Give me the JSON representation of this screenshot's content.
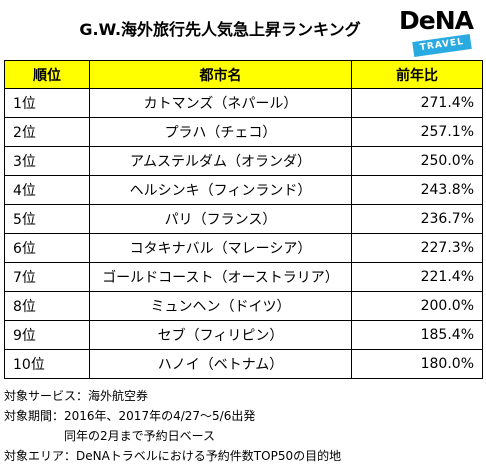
{
  "title": "G.W.海外旅行先人気急上昇ランキング",
  "logo": {
    "word": "DeNA",
    "sub": "TRAVEL",
    "accent_color": "#29abe2"
  },
  "table": {
    "headers": [
      "順位",
      "都市名",
      "前年比"
    ],
    "header_color": "#ffff00",
    "rows": [
      {
        "rank": "1位",
        "city": "カトマンズ（ネパール）",
        "value": "271.4%"
      },
      {
        "rank": "2位",
        "city": "プラハ（チェコ）",
        "value": "257.1%"
      },
      {
        "rank": "3位",
        "city": "アムステルダム（オランダ）",
        "value": "250.0%"
      },
      {
        "rank": "4位",
        "city": "ヘルシンキ（フィンランド）",
        "value": "243.8%"
      },
      {
        "rank": "5位",
        "city": "パリ（フランス）",
        "value": "236.7%"
      },
      {
        "rank": "6位",
        "city": "コタキナバル（マレーシア）",
        "value": "227.3%"
      },
      {
        "rank": "7位",
        "city": "ゴールドコースト（オーストラリア）",
        "value": "221.4%"
      },
      {
        "rank": "8位",
        "city": "ミュンヘン（ドイツ）",
        "value": "200.0%"
      },
      {
        "rank": "9位",
        "city": "セブ（フィリピン）",
        "value": "185.4%"
      },
      {
        "rank": "10位",
        "city": "ハノイ（ベトナム）",
        "value": "180.0%"
      }
    ]
  },
  "notes": [
    "対象サービス：海外航空券",
    "対象期間：2016年、2017年の4/27～5/6出発",
    "同年の2月まで予約日ベース",
    "対象エリア：DeNAトラベルにおける予約件数TOP50の目的地"
  ]
}
